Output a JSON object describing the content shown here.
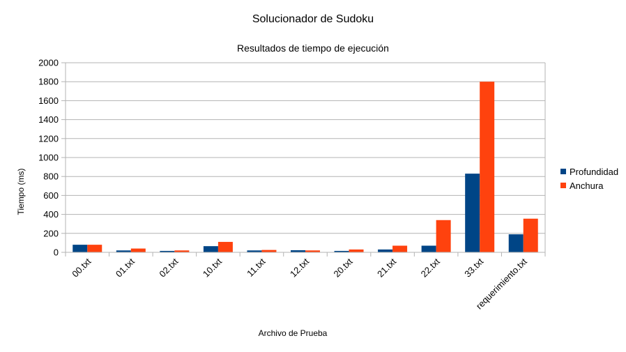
{
  "chart_data": {
    "type": "bar",
    "title": "Solucionador de Sudoku",
    "subtitle": "Resultados de tiempo de ejecución",
    "xlabel": "Archivo de Prueba",
    "ylabel": "Tiempo (ms)",
    "ylim": [
      0,
      2000
    ],
    "yticks": [
      0,
      200,
      400,
      600,
      800,
      1000,
      1200,
      1400,
      1600,
      1800,
      2000
    ],
    "grid": true,
    "legend_position": "right",
    "categories": [
      "00.txt",
      "01.txt",
      "02.txt",
      "10.txt",
      "11.txt",
      "12.txt",
      "20.txt",
      "21.txt",
      "22.txt",
      "33.txt",
      "requerimiento.txt"
    ],
    "series": [
      {
        "name": "Profundidad",
        "color": "#004586",
        "values": [
          80,
          20,
          15,
          65,
          20,
          22,
          15,
          30,
          70,
          830,
          190
        ]
      },
      {
        "name": "Anchura",
        "color": "#ff420e",
        "values": [
          80,
          40,
          20,
          110,
          25,
          20,
          30,
          70,
          340,
          1800,
          355
        ]
      }
    ]
  }
}
